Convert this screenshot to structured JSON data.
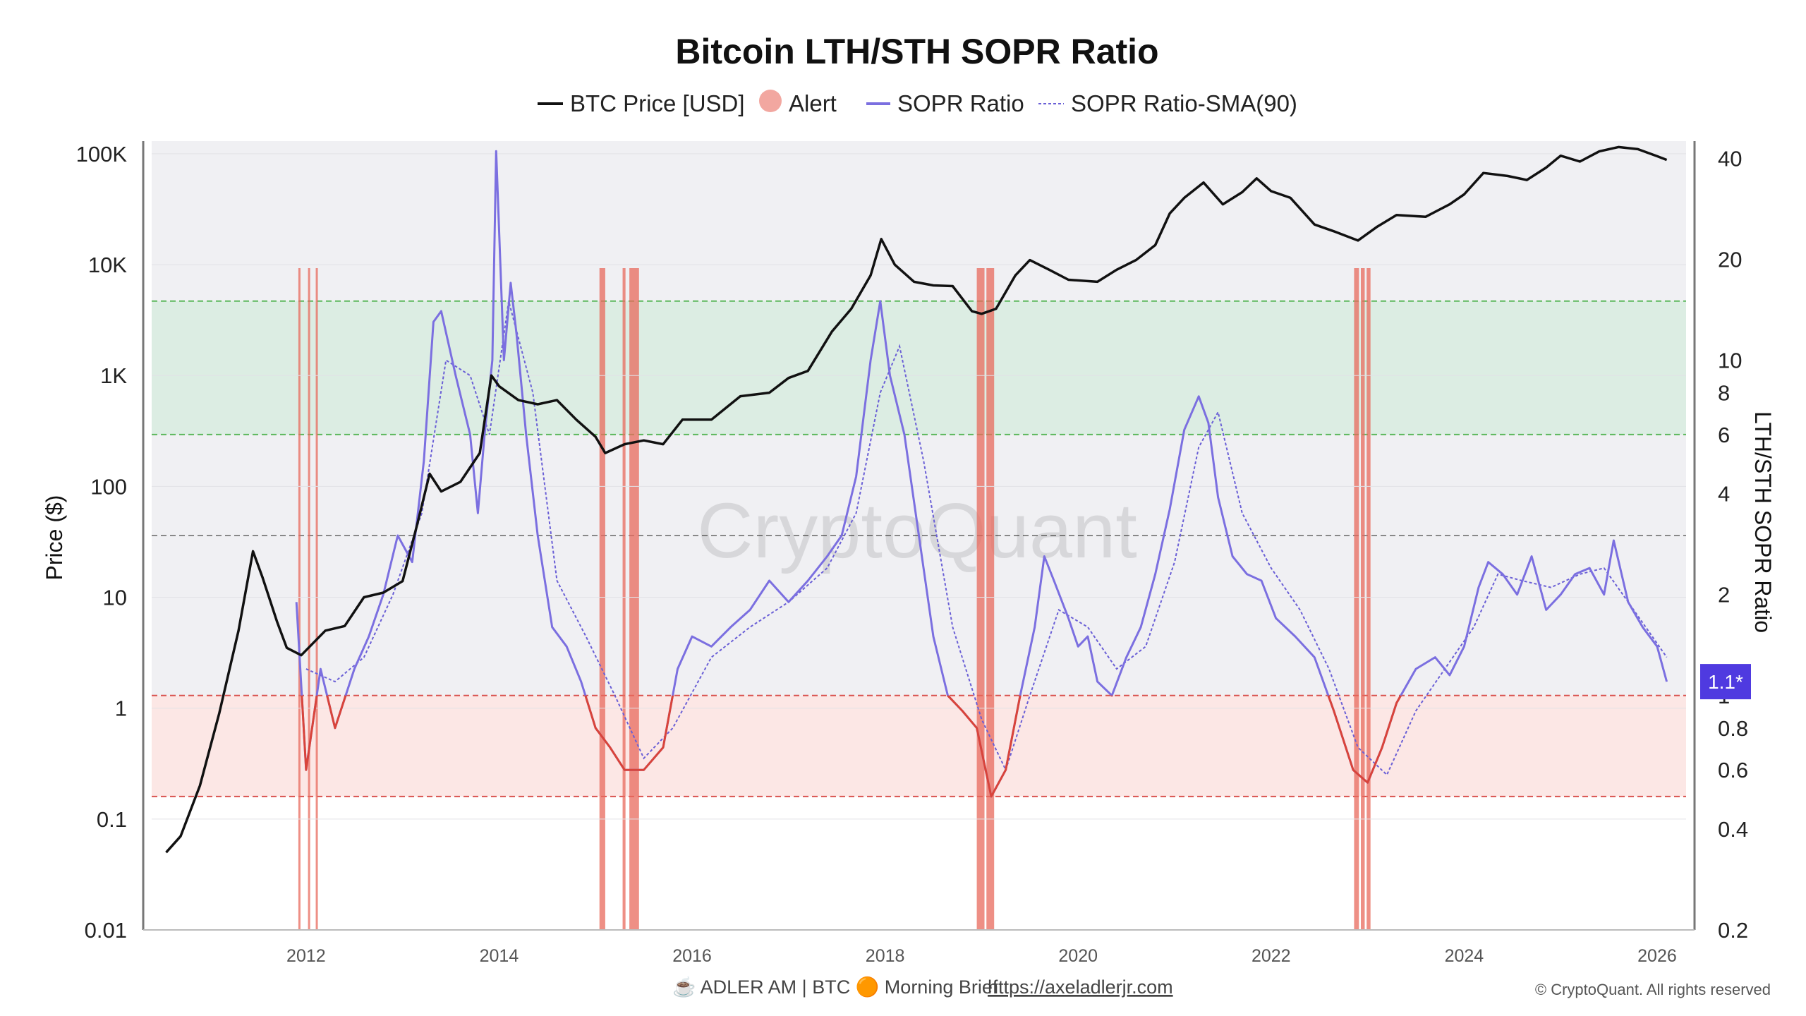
{
  "chart_data": {
    "type": "line",
    "title": "Bitcoin LTH/STH SOPR Ratio",
    "watermark": "CryptoQuant",
    "legend": [
      {
        "label": "BTC Price [USD]",
        "style": "line",
        "color": "#111111"
      },
      {
        "label": "Alert",
        "style": "dot",
        "color": "#f2a7a0"
      },
      {
        "label": "SOPR Ratio",
        "style": "line",
        "color": "#7b6fe0"
      },
      {
        "label": "SOPR Ratio-SMA(90)",
        "style": "dashed",
        "color": "#6a5fd6"
      }
    ],
    "left_axis": {
      "label": "Price ($)",
      "scale": "log",
      "range": [
        0.01,
        130000
      ],
      "ticks": [
        "0.01",
        "0.1",
        "1",
        "10",
        "100",
        "1K",
        "10K",
        "100K"
      ],
      "tick_values": [
        0.01,
        0.1,
        1,
        10,
        100,
        1000,
        10000,
        100000
      ]
    },
    "right_axis": {
      "label": "LTH/STH SOPR Ratio",
      "scale": "log",
      "range": [
        0.2,
        45
      ],
      "ticks": [
        "0.2",
        "0.4",
        "0.6",
        "0.8",
        "1",
        "2",
        "4",
        "6",
        "8",
        "10",
        "20",
        "40"
      ],
      "tick_values": [
        0.2,
        0.4,
        0.6,
        0.8,
        1,
        2,
        4,
        6,
        8,
        10,
        20,
        40
      ]
    },
    "x_axis": {
      "range": [
        2010.4,
        2026.3
      ],
      "ticks": [
        "2012",
        "2014",
        "2016",
        "2018",
        "2020",
        "2022",
        "2024",
        "2026"
      ],
      "tick_values": [
        2012,
        2014,
        2016,
        2018,
        2020,
        2022,
        2024,
        2026
      ]
    },
    "bands": [
      {
        "name": "green",
        "from": 6,
        "to": 15,
        "color": "#d8ecdf",
        "line_color": "#5cb85c"
      },
      {
        "name": "red",
        "from": 0.5,
        "to": 1,
        "color": "#fbe3e1",
        "line_color": "#d9534f"
      }
    ],
    "reference_line": {
      "value": 3,
      "color": "#888888"
    },
    "current_badge": {
      "text": "1.1*",
      "value": 1.1,
      "color": "#4f3ae0"
    },
    "alert_periods": [
      [
        2011.92,
        2011.94
      ],
      [
        2012.02,
        2012.04
      ],
      [
        2012.1,
        2012.12
      ],
      [
        2015.04,
        2015.1
      ],
      [
        2015.28,
        2015.31
      ],
      [
        2015.35,
        2015.45
      ],
      [
        2018.95,
        2019.03
      ],
      [
        2019.05,
        2019.13
      ],
      [
        2022.86,
        2022.91
      ],
      [
        2022.93,
        2022.97
      ],
      [
        2022.99,
        2023.03
      ]
    ],
    "btc_price": {
      "x": [
        2010.55,
        2010.7,
        2010.9,
        2011.1,
        2011.3,
        2011.45,
        2011.55,
        2011.7,
        2011.8,
        2011.95,
        2012.2,
        2012.4,
        2012.6,
        2012.8,
        2013.0,
        2013.15,
        2013.28,
        2013.4,
        2013.6,
        2013.8,
        2013.92,
        2014.0,
        2014.2,
        2014.4,
        2014.6,
        2014.8,
        2015.0,
        2015.1,
        2015.3,
        2015.5,
        2015.7,
        2015.9,
        2016.2,
        2016.5,
        2016.8,
        2017.0,
        2017.2,
        2017.45,
        2017.65,
        2017.85,
        2017.96,
        2018.1,
        2018.3,
        2018.5,
        2018.7,
        2018.9,
        2019.0,
        2019.15,
        2019.35,
        2019.5,
        2019.7,
        2019.9,
        2020.2,
        2020.4,
        2020.6,
        2020.8,
        2020.95,
        2021.1,
        2021.3,
        2021.5,
        2021.7,
        2021.85,
        2022.0,
        2022.2,
        2022.45,
        2022.65,
        2022.9,
        2023.1,
        2023.3,
        2023.6,
        2023.85,
        2024.0,
        2024.2,
        2024.45,
        2024.65,
        2024.85,
        2025.0,
        2025.2,
        2025.4,
        2025.6,
        2025.8,
        2026.0,
        2026.1
      ],
      "y": [
        0.05,
        0.07,
        0.2,
        0.9,
        5,
        26,
        15,
        6,
        3.5,
        3,
        5,
        5.5,
        10,
        11,
        14,
        45,
        130,
        90,
        110,
        200,
        1000,
        800,
        600,
        550,
        600,
        400,
        280,
        200,
        240,
        260,
        240,
        400,
        400,
        650,
        700,
        950,
        1100,
        2500,
        4000,
        8000,
        17000,
        10000,
        7000,
        6500,
        6400,
        3800,
        3600,
        4000,
        8000,
        11000,
        9000,
        7300,
        7000,
        9000,
        11000,
        15000,
        29000,
        40000,
        55000,
        35000,
        45000,
        60000,
        46000,
        40000,
        23000,
        20000,
        16500,
        22000,
        28000,
        27000,
        35000,
        43000,
        67000,
        63000,
        58000,
        75000,
        96000,
        85000,
        105000,
        115000,
        110000,
        95000,
        88000
      ]
    },
    "sopr_ratio": {
      "x": [
        2011.9,
        2012.0,
        2012.15,
        2012.3,
        2012.5,
        2012.65,
        2012.8,
        2012.95,
        2013.1,
        2013.22,
        2013.32,
        2013.4,
        2013.55,
        2013.7,
        2013.78,
        2013.85,
        2013.93,
        2013.97,
        2014.05,
        2014.12,
        2014.18,
        2014.28,
        2014.4,
        2014.55,
        2014.7,
        2014.85,
        2015.0,
        2015.15,
        2015.3,
        2015.5,
        2015.7,
        2015.85,
        2016.0,
        2016.2,
        2016.4,
        2016.6,
        2016.8,
        2017.0,
        2017.2,
        2017.4,
        2017.55,
        2017.7,
        2017.85,
        2017.95,
        2018.05,
        2018.2,
        2018.35,
        2018.5,
        2018.65,
        2018.8,
        2018.95,
        2019.1,
        2019.25,
        2019.4,
        2019.55,
        2019.65,
        2019.75,
        2019.9,
        2020.0,
        2020.1,
        2020.2,
        2020.35,
        2020.5,
        2020.65,
        2020.8,
        2020.95,
        2021.1,
        2021.25,
        2021.35,
        2021.45,
        2021.6,
        2021.75,
        2021.9,
        2022.05,
        2022.25,
        2022.45,
        2022.65,
        2022.85,
        2023.0,
        2023.15,
        2023.3,
        2023.5,
        2023.7,
        2023.85,
        2024.0,
        2024.15,
        2024.25,
        2024.4,
        2024.55,
        2024.7,
        2024.85,
        2025.0,
        2025.15,
        2025.3,
        2025.45,
        2025.55,
        2025.7,
        2025.85,
        2026.0,
        2026.1
      ],
      "y": [
        1.9,
        0.6,
        1.2,
        0.8,
        1.2,
        1.5,
        2.0,
        3.0,
        2.5,
        5.0,
        13,
        14,
        9,
        6,
        3.5,
        6,
        10,
        42,
        10,
        17,
        12,
        6,
        3,
        1.6,
        1.4,
        1.1,
        0.8,
        0.7,
        0.6,
        0.6,
        0.7,
        1.2,
        1.5,
        1.4,
        1.6,
        1.8,
        2.2,
        1.9,
        2.2,
        2.6,
        3.0,
        4.5,
        10,
        15,
        9,
        6,
        3,
        1.5,
        1.0,
        0.9,
        0.8,
        0.5,
        0.6,
        1.0,
        1.6,
        2.6,
        2.2,
        1.7,
        1.4,
        1.5,
        1.1,
        1.0,
        1.3,
        1.6,
        2.3,
        3.6,
        6.2,
        7.8,
        6.5,
        3.9,
        2.6,
        2.3,
        2.2,
        1.7,
        1.5,
        1.3,
        0.9,
        0.6,
        0.55,
        0.7,
        0.95,
        1.2,
        1.3,
        1.15,
        1.4,
        2.1,
        2.5,
        2.3,
        2.0,
        2.6,
        1.8,
        2.0,
        2.3,
        2.4,
        2.0,
        2.9,
        1.9,
        1.6,
        1.4,
        1.1
      ]
    },
    "sopr_sma90": {
      "x": [
        2012.0,
        2012.3,
        2012.6,
        2012.9,
        2013.2,
        2013.45,
        2013.7,
        2013.9,
        2014.1,
        2014.35,
        2014.6,
        2014.9,
        2015.2,
        2015.5,
        2015.8,
        2016.2,
        2016.6,
        2017.0,
        2017.4,
        2017.7,
        2017.95,
        2018.15,
        2018.4,
        2018.7,
        2019.0,
        2019.25,
        2019.5,
        2019.8,
        2020.1,
        2020.4,
        2020.7,
        2021.0,
        2021.25,
        2021.45,
        2021.7,
        2022.0,
        2022.3,
        2022.6,
        2022.9,
        2023.2,
        2023.5,
        2023.8,
        2024.1,
        2024.35,
        2024.6,
        2024.9,
        2025.2,
        2025.45,
        2025.7,
        2025.95,
        2026.1
      ],
      "y": [
        1.2,
        1.1,
        1.3,
        2.0,
        3.5,
        10,
        9,
        6,
        15,
        8,
        2.2,
        1.5,
        1.0,
        0.65,
        0.8,
        1.3,
        1.6,
        1.9,
        2.4,
        3.5,
        8,
        11,
        5,
        1.6,
        0.85,
        0.6,
        1.0,
        1.8,
        1.6,
        1.2,
        1.4,
        2.5,
        5.5,
        7.0,
        3.5,
        2.4,
        1.8,
        1.2,
        0.7,
        0.58,
        0.9,
        1.2,
        1.6,
        2.3,
        2.2,
        2.1,
        2.3,
        2.4,
        1.9,
        1.5,
        1.3
      ]
    }
  },
  "footer": {
    "brand": "☕ ADLER AM | BTC 🟠 Morning Brief",
    "link": "https://axeladlerjr.com",
    "copyright": "© CryptoQuant. All rights reserved"
  }
}
